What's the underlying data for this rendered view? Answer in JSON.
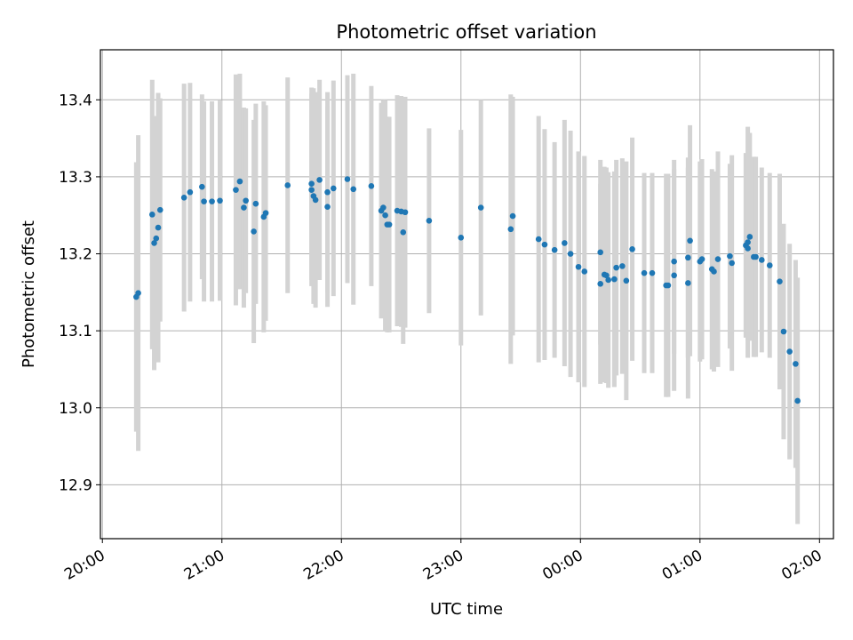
{
  "chart_data": {
    "type": "scatter",
    "title": "Photometric offset variation",
    "xlabel": "UTC time",
    "ylabel": "Photometric offset",
    "x_ticks": [
      "20:00",
      "21:00",
      "22:00",
      "23:00",
      "00:00",
      "01:00",
      "02:00"
    ],
    "y_ticks": [
      "12.9",
      "13.0",
      "13.1",
      "13.2",
      "13.3",
      "13.4"
    ],
    "xlim": [
      "19:59",
      "02:07"
    ],
    "ylim": [
      12.83,
      13.465
    ],
    "grid": true,
    "colors": {
      "point": "#1f77b4",
      "errorbar": "#d3d3d3",
      "grid": "#b0b0b0"
    },
    "x": [
      "20:17",
      "20:18",
      "20:25",
      "20:26",
      "20:27",
      "20:28",
      "20:29",
      "20:41",
      "20:44",
      "20:50",
      "20:51",
      "20:55",
      "20:59",
      "21:07",
      "21:09",
      "21:11",
      "21:12",
      "21:16",
      "21:17",
      "21:21",
      "21:22",
      "21:33",
      "21:45",
      "21:45",
      "21:46",
      "21:47",
      "21:49",
      "21:53",
      "21:53",
      "21:56",
      "22:03",
      "22:06",
      "22:15",
      "22:20",
      "22:21",
      "22:22",
      "22:23",
      "22:24",
      "22:28",
      "22:30",
      "22:31",
      "22:32",
      "22:44",
      "23:00",
      "23:10",
      "23:25",
      "23:26",
      "23:39",
      "23:42",
      "23:47",
      "23:52",
      "23:55",
      "23:59",
      "24:02",
      "24:10",
      "24:10",
      "24:12",
      "24:13",
      "24:14",
      "24:17",
      "24:18",
      "24:21",
      "24:23",
      "24:26",
      "24:32",
      "24:36",
      "24:43",
      "24:44",
      "24:47",
      "24:47",
      "24:54",
      "24:54",
      "24:55",
      "25:00",
      "25:01",
      "25:06",
      "25:07",
      "25:09",
      "25:15",
      "25:16",
      "25:23",
      "25:24",
      "25:24",
      "25:25",
      "25:27",
      "25:28",
      "25:31",
      "25:35",
      "25:40",
      "25:42",
      "25:45",
      "25:48",
      "25:49"
    ],
    "y": [
      13.144,
      13.149,
      13.251,
      13.214,
      13.22,
      13.234,
      13.257,
      13.273,
      13.28,
      13.287,
      13.268,
      13.268,
      13.269,
      13.283,
      13.294,
      13.26,
      13.269,
      13.229,
      13.265,
      13.248,
      13.253,
      13.289,
      13.291,
      13.283,
      13.275,
      13.27,
      13.296,
      13.28,
      13.261,
      13.285,
      13.297,
      13.284,
      13.288,
      13.256,
      13.26,
      13.25,
      13.238,
      13.238,
      13.256,
      13.255,
      13.228,
      13.254,
      13.243,
      13.221,
      13.26,
      13.232,
      13.249,
      13.219,
      13.212,
      13.205,
      13.214,
      13.2,
      13.183,
      13.177,
      13.202,
      13.161,
      13.173,
      13.172,
      13.166,
      13.167,
      13.182,
      13.184,
      13.165,
      13.206,
      13.175,
      13.175,
      13.159,
      13.159,
      13.172,
      13.19,
      13.195,
      13.162,
      13.217,
      13.19,
      13.193,
      13.18,
      13.177,
      13.193,
      13.197,
      13.188,
      13.211,
      13.207,
      13.215,
      13.222,
      13.196,
      13.196,
      13.192,
      13.185,
      13.164,
      13.099,
      13.073,
      13.057,
      13.009
    ],
    "yerr": [
      0.175,
      0.205,
      0.175,
      0.165,
      0.155,
      0.175,
      0.145,
      0.148,
      0.142,
      0.12,
      0.13,
      0.13,
      0.13,
      0.15,
      0.14,
      0.13,
      0.12,
      0.145,
      0.13,
      0.15,
      0.14,
      0.14,
      0.125,
      0.125,
      0.14,
      0.14,
      0.13,
      0.13,
      0.13,
      0.14,
      0.135,
      0.15,
      0.13,
      0.14,
      0.14,
      0.15,
      0.14,
      0.14,
      0.15,
      0.15,
      0.145,
      0.15,
      0.12,
      0.14,
      0.14,
      0.175,
      0.155,
      0.16,
      0.15,
      0.14,
      0.16,
      0.16,
      0.15,
      0.15,
      0.12,
      0.13,
      0.14,
      0.14,
      0.14,
      0.14,
      0.14,
      0.14,
      0.155,
      0.145,
      0.13,
      0.13,
      0.145,
      0.145,
      0.15,
      0.12,
      0.13,
      0.15,
      0.15,
      0.13,
      0.13,
      0.13,
      0.13,
      0.14,
      0.12,
      0.14,
      0.12,
      0.12,
      0.15,
      0.135,
      0.13,
      0.13,
      0.12,
      0.12,
      0.14,
      0.14,
      0.14,
      0.135,
      0.16
    ]
  }
}
